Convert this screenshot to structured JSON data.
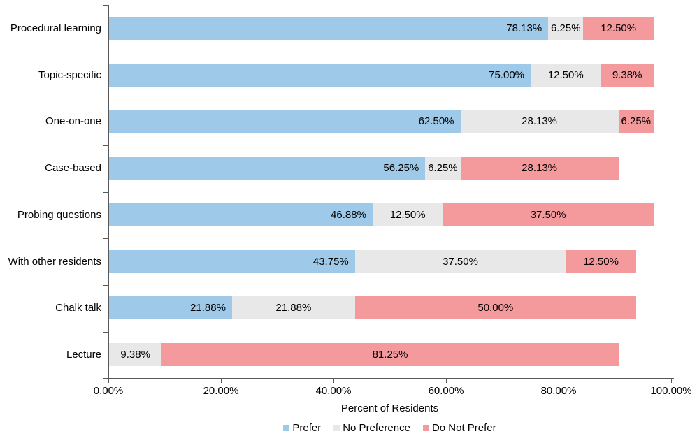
{
  "chart_data": {
    "type": "bar",
    "orientation": "horizontal",
    "stacked": true,
    "title": "",
    "xlabel": "Percent of Residents",
    "ylabel": "",
    "xlim": [
      0,
      100
    ],
    "grid": false,
    "legend_position": "bottom",
    "axis_color": "#595959",
    "text_color": "#000000",
    "x_tick_values": [
      0,
      20,
      40,
      60,
      80,
      100
    ],
    "x_tick_labels": [
      "0.00%",
      "20.00%",
      "40.00%",
      "60.00%",
      "80.00%",
      "100.00%"
    ],
    "categories": [
      "Procedural learning",
      "Topic-specific",
      "One-on-one",
      "Case-based",
      "Probing questions",
      "With other residents",
      "Chalk talk",
      "Lecture"
    ],
    "series": [
      {
        "name": "Prefer",
        "color": "#9FC9E8",
        "label_align": "end",
        "values": [
          78.13,
          75.0,
          62.5,
          56.25,
          46.88,
          43.75,
          21.88,
          0
        ]
      },
      {
        "name": "No Preference",
        "color": "#E8E8E8",
        "label_align": "center",
        "values": [
          6.25,
          12.5,
          28.13,
          6.25,
          12.5,
          37.5,
          21.88,
          9.38
        ]
      },
      {
        "name": "Do Not Prefer",
        "color": "#F49A9D",
        "label_align": "center",
        "values": [
          12.5,
          9.38,
          6.25,
          28.13,
          37.5,
          12.5,
          50.0,
          81.25
        ]
      }
    ],
    "data_labels": [
      [
        "78.13%",
        "6.25%",
        "12.50%"
      ],
      [
        "75.00%",
        "12.50%",
        "9.38%"
      ],
      [
        "62.50%",
        "28.13%",
        "6.25%"
      ],
      [
        "56.25%",
        "6.25%",
        "28.13%"
      ],
      [
        "46.88%",
        "12.50%",
        "37.50%"
      ],
      [
        "43.75%",
        "37.50%",
        "12.50%"
      ],
      [
        "21.88%",
        "21.88%",
        "50.00%"
      ],
      [
        "",
        "9.38%",
        "81.25%"
      ]
    ]
  }
}
